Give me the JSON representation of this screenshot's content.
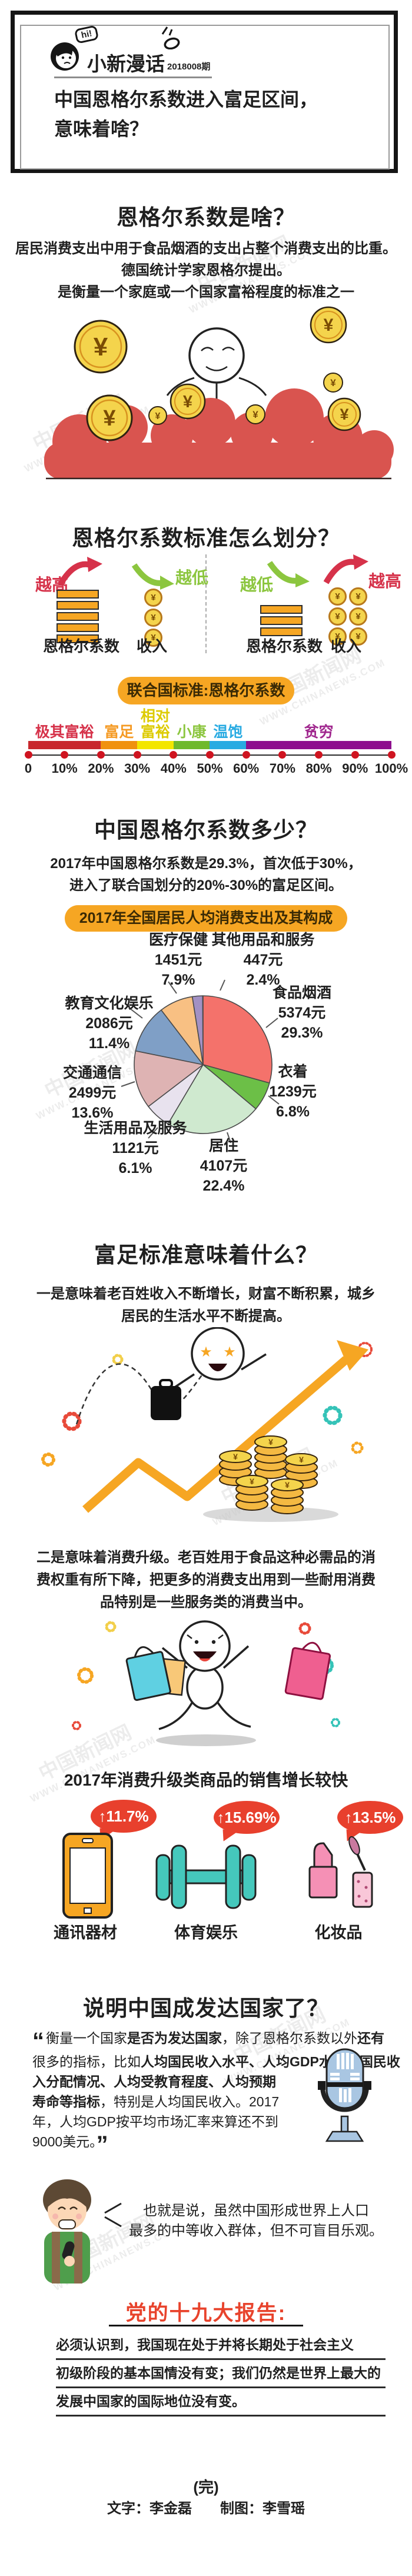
{
  "watermark": {
    "site": "中国新闻网",
    "url": "WWW.CHINANEWS.COM"
  },
  "icons": {
    "coin_symbol": "¥",
    "up_arrow": "↑",
    "hi": "hi!"
  },
  "header": {
    "brand": "小新漫话",
    "issue": "2018008期",
    "title1": "中国恩格尔系数进入富足区间，",
    "title2": "意味着啥？"
  },
  "s1": {
    "heading": "恩格尔系数是啥？",
    "l1": "居民消费支出中用于食品烟酒的支出占整个消费支出的比重。",
    "l2": "德国统计学家恩格尔提出。",
    "l3": "是衡量一个家庭或一个国家富裕程度的标准之一"
  },
  "s2": {
    "heading": "恩格尔系数标准怎么划分？",
    "higher": "越高",
    "lower": "越低",
    "engel": "恩格尔系数",
    "income": "收入",
    "pill": "联合国标准:恩格尔系数"
  },
  "s3": {
    "heading": "中国恩格尔系数多少？",
    "l1": "2017年中国恩格尔系数是29.3%，首次低于30%，",
    "l2": "进入了联合国划分的20%-30%的富足区间。",
    "pill": "2017年全国居民人均消费支出及其构成"
  },
  "s4": {
    "heading": "富足标准意味着什么？",
    "p1l1": "一是意味着老百姓收入不断增长，财富不断积累，城乡",
    "p1l2": "居民的生活水平不断提高。",
    "p2l1": "二是意味着消费升级。老百姓用于食品这种必需品的消",
    "p2l2": "费权重有所下降，把更多的消费支出用到一些耐用消费",
    "p2l3": "品特别是一些服务类的消费当中。"
  },
  "s5": {
    "heading": "2017年消费升级类商品的销售增长较快",
    "items": [
      {
        "pct": "11.7%",
        "label": "通讯器材"
      },
      {
        "pct": "15.69%",
        "label": "体育娱乐"
      },
      {
        "pct": "13.5%",
        "label": "化妆品"
      }
    ]
  },
  "s6": {
    "heading": "说明中国成发达国家了？",
    "quote_lines": [
      [
        {
          "t": "“",
          "q": 1
        },
        {
          "t": "衡量一个国家"
        },
        {
          "t": "是否为发达国家",
          "b": 1
        },
        {
          "t": "，除了恩格尔系数以外"
        },
        {
          "t": "还有",
          "b": 1
        }
      ],
      [
        {
          "t": "很多的指标，比如"
        },
        {
          "t": "人均国民收入水平、人均GDP水平、国民收",
          "b": 1
        }
      ],
      [
        {
          "t": "入分配情况、人均受教育程度、人均预期",
          "b": 1
        }
      ],
      [
        {
          "t": "寿命等指标",
          "b": 1
        },
        {
          "t": "，特别是人均国民收入。2017"
        }
      ],
      [
        {
          "t": "年，人均GDP按平均市场汇率来算还不到"
        }
      ],
      [
        {
          "t": "9000美元。"
        },
        {
          "t": "”",
          "q": 1
        }
      ]
    ],
    "speech_l1": "也就是说，虽然中国形成世界上人口",
    "speech_l2": "最多的中等收入群体，但不可盲目乐观。"
  },
  "s7": {
    "heading": "党的十九大报告:",
    "l1": "必须认识到，我国现在处于并将长期处于社会主义",
    "l2": "初级阶段的基本国情没有变；我们仍然是世界上最大的",
    "l3": "发展中国家的国际地位没有变。"
  },
  "footer": {
    "end": "(完)",
    "credits": "文字：李金磊　　制图：李雪瑶"
  },
  "chart_data": [
    {
      "type": "pie",
      "title": "2017年全国居民人均消费支出及其构成",
      "unit": "元",
      "start_angle_deg": -90,
      "clockwise": true,
      "slices": [
        {
          "name": "食品烟酒",
          "value": 5374,
          "value_label": "5374元",
          "pct": 29.3,
          "pct_label": "29.3%",
          "color": "#f4726b"
        },
        {
          "name": "衣着",
          "value": 1239,
          "value_label": "1239元",
          "pct": 6.8,
          "pct_label": "6.8%",
          "color": "#6cbf47"
        },
        {
          "name": "居住",
          "value": 4107,
          "value_label": "4107元",
          "pct": 22.4,
          "pct_label": "22.4%",
          "color": "#cfe9cf"
        },
        {
          "name": "生活用品及服务",
          "value": 1121,
          "value_label": "1121元",
          "pct": 6.1,
          "pct_label": "6.1%",
          "color": "#e8e2ee"
        },
        {
          "name": "交通通信",
          "value": 2499,
          "value_label": "2499元",
          "pct": 13.6,
          "pct_label": "13.6%",
          "color": "#deb3b3"
        },
        {
          "name": "教育文化娱乐",
          "value": 2086,
          "value_label": "2086元",
          "pct": 11.4,
          "pct_label": "11.4%",
          "color": "#7f9fc6"
        },
        {
          "name": "医疗保健",
          "value": 1451,
          "value_label": "1451元",
          "pct": 7.9,
          "pct_label": "7.9%",
          "color": "#f8c083"
        },
        {
          "name": "其他用品和服务",
          "value": 447,
          "value_label": "447元",
          "pct": 2.4,
          "pct_label": "2.4%",
          "color": "#a291c4"
        }
      ]
    },
    {
      "type": "scale",
      "title": "联合国标准:恩格尔系数",
      "xlim": [
        0,
        100
      ],
      "tiers": [
        {
          "lines": [
            "极其富裕"
          ],
          "range": [
            0,
            20
          ],
          "color": "#c8282d",
          "label_color": "#d6324a",
          "x": 10
        },
        {
          "lines": [
            "富足"
          ],
          "range": [
            20,
            30
          ],
          "color": "#f0920e",
          "label_color": "#f59a23",
          "x": 25
        },
        {
          "lines": [
            "相对",
            "富裕"
          ],
          "range": [
            30,
            40
          ],
          "color": "#f3e600",
          "label_color": "#ddcb00",
          "x": 35
        },
        {
          "lines": [
            "小康"
          ],
          "range": [
            40,
            50
          ],
          "color": "#6fb92c",
          "label_color": "#8cc63f",
          "x": 45
        },
        {
          "lines": [
            "温饱"
          ],
          "range": [
            50,
            60
          ],
          "color": "#29abe2",
          "label_color": "#29abe2",
          "x": 55
        },
        {
          "lines": [
            "贫穷"
          ],
          "range": [
            60,
            100
          ],
          "color": "#8e0f8e",
          "label_color": "#a0278e",
          "x": 80
        }
      ],
      "ticks": [
        "0",
        "10%",
        "20%",
        "30%",
        "40%",
        "50%",
        "60%",
        "70%",
        "80%",
        "90%",
        "100%"
      ]
    },
    {
      "type": "bar",
      "title": "2017年消费升级类商品的销售增长较快",
      "categories": [
        "通讯器材",
        "体育娱乐",
        "化妆品"
      ],
      "values": [
        11.7,
        15.69,
        13.5
      ],
      "value_labels": [
        "↑11.7%",
        "↑15.69%",
        "↑13.5%"
      ]
    }
  ]
}
